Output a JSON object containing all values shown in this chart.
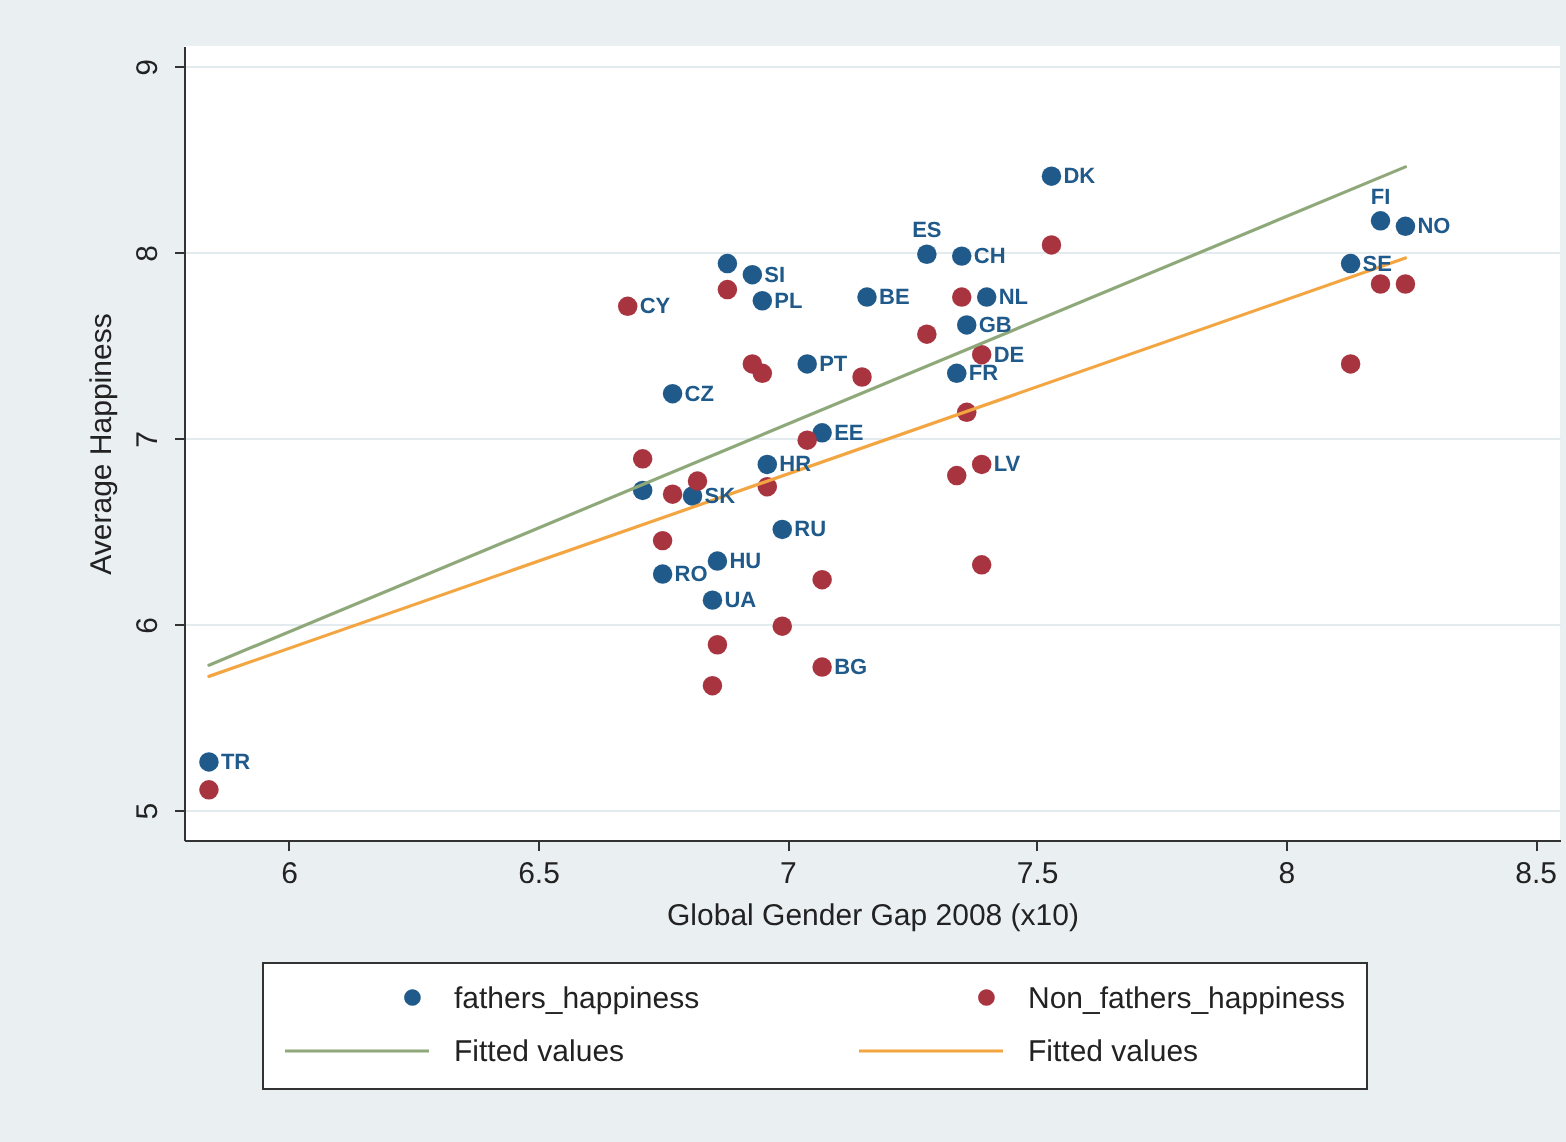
{
  "chart_data": {
    "type": "scatter",
    "xlabel": "Global Gender Gap 2008 (x10)",
    "ylabel": "Average Happiness",
    "xlim": [
      5.79,
      8.55
    ],
    "ylim": [
      4.84,
      9.11
    ],
    "xticks": [
      6,
      6.5,
      7,
      7.5,
      8,
      8.5
    ],
    "yticks": [
      5,
      6,
      7,
      8,
      9
    ],
    "grid": "y",
    "legend": "bottom",
    "series": [
      {
        "name": "fathers_happiness",
        "color": "#1f5a8a",
        "marker": "circle",
        "x": [
          5.84,
          6.77,
          6.88,
          6.93,
          6.95,
          7.16,
          7.28,
          7.35,
          7.4,
          7.36,
          7.34,
          7.04,
          7.07,
          6.96,
          6.81,
          6.71,
          6.99,
          6.75,
          6.86,
          6.85,
          7.53,
          8.19,
          8.24,
          8.13
        ],
        "values": [
          5.26,
          7.24,
          7.94,
          7.88,
          7.74,
          7.76,
          7.99,
          7.98,
          7.76,
          7.61,
          7.35,
          7.4,
          7.03,
          6.86,
          6.69,
          6.72,
          6.51,
          6.27,
          6.34,
          6.13,
          8.41,
          8.17,
          8.14,
          7.94
        ]
      },
      {
        "name": "Non_fathers_happiness",
        "color": "#a8343f",
        "marker": "circle",
        "x": [
          5.84,
          6.68,
          6.71,
          6.77,
          6.82,
          6.88,
          6.93,
          6.95,
          6.96,
          7.15,
          7.28,
          7.35,
          7.36,
          7.39,
          7.39,
          7.34,
          7.39,
          7.04,
          7.07,
          7.07,
          6.75,
          6.86,
          6.85,
          6.99,
          7.53,
          8.19,
          8.24,
          8.13
        ],
        "values": [
          5.11,
          7.71,
          6.89,
          6.7,
          6.77,
          7.8,
          7.4,
          7.35,
          6.74,
          7.33,
          7.56,
          7.76,
          7.14,
          7.45,
          6.86,
          6.8,
          6.32,
          6.99,
          6.24,
          5.77,
          6.45,
          5.89,
          5.67,
          5.99,
          8.04,
          7.83,
          7.83,
          7.4
        ]
      },
      {
        "name": "Fitted values",
        "type": "line",
        "color": "#8fa87a",
        "x": [
          5.84,
          8.24
        ],
        "values": [
          5.78,
          8.46
        ]
      },
      {
        "name": "Fitted values",
        "type": "line",
        "color": "#f2a541",
        "x": [
          5.84,
          8.24
        ],
        "values": [
          5.72,
          7.97
        ]
      }
    ],
    "annotations": [
      {
        "text": "TR",
        "x": 5.84,
        "y": 5.26
      },
      {
        "text": "CY",
        "x": 6.68,
        "y": 7.71
      },
      {
        "text": "CZ",
        "x": 6.77,
        "y": 7.24
      },
      {
        "text": "SI",
        "x": 6.93,
        "y": 7.88
      },
      {
        "text": "PL",
        "x": 6.95,
        "y": 7.74
      },
      {
        "text": "BE",
        "x": 7.16,
        "y": 7.76
      },
      {
        "text": "ES",
        "x": 7.28,
        "y": 7.99
      },
      {
        "text": "CH",
        "x": 7.35,
        "y": 7.98
      },
      {
        "text": "NL",
        "x": 7.4,
        "y": 7.76
      },
      {
        "text": "GB",
        "x": 7.36,
        "y": 7.61
      },
      {
        "text": "DE",
        "x": 7.39,
        "y": 7.45
      },
      {
        "text": "FR",
        "x": 7.34,
        "y": 7.35
      },
      {
        "text": "PT",
        "x": 7.04,
        "y": 7.4
      },
      {
        "text": "EE",
        "x": 7.07,
        "y": 7.03
      },
      {
        "text": "HR",
        "x": 6.96,
        "y": 6.86
      },
      {
        "text": "LV",
        "x": 7.39,
        "y": 6.86
      },
      {
        "text": "SK",
        "x": 6.81,
        "y": 6.69
      },
      {
        "text": "RU",
        "x": 6.99,
        "y": 6.51
      },
      {
        "text": "RO",
        "x": 6.75,
        "y": 6.27
      },
      {
        "text": "HU",
        "x": 6.86,
        "y": 6.34
      },
      {
        "text": "UA",
        "x": 6.85,
        "y": 6.13
      },
      {
        "text": "BG",
        "x": 7.07,
        "y": 5.77
      },
      {
        "text": "DK",
        "x": 7.53,
        "y": 8.41
      },
      {
        "text": "FI",
        "x": 8.19,
        "y": 8.17
      },
      {
        "text": "NO",
        "x": 8.24,
        "y": 8.14
      },
      {
        "text": "SE",
        "x": 8.13,
        "y": 7.94
      }
    ]
  }
}
